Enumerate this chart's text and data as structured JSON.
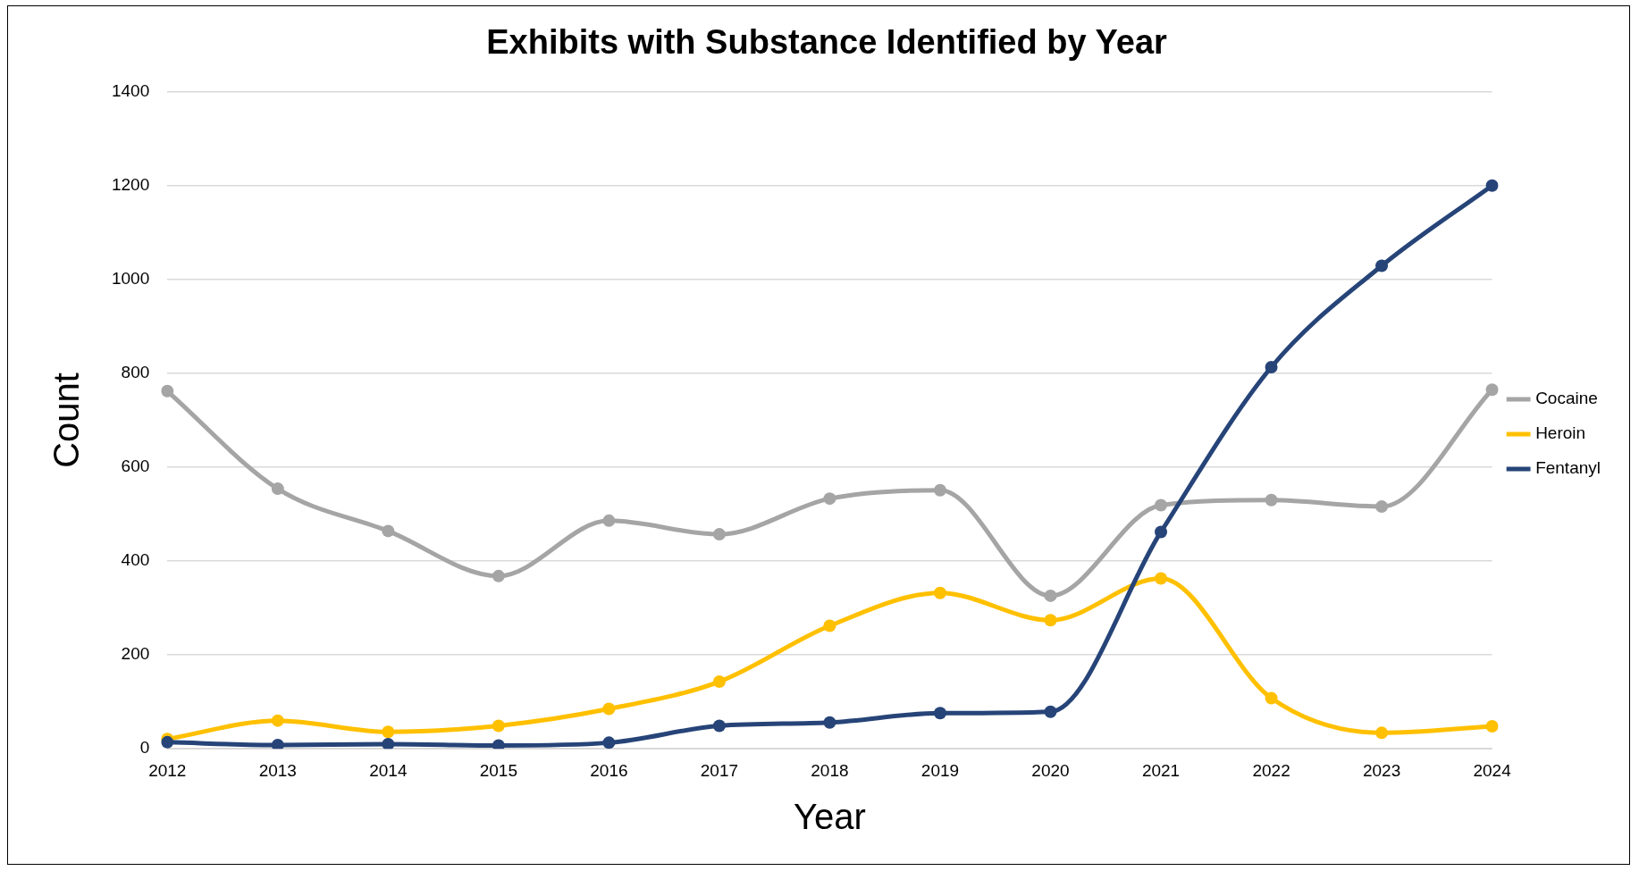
{
  "chart_data": {
    "type": "line",
    "title": "Exhibits with Substance Identified by Year",
    "xlabel": "Year",
    "ylabel": "Count",
    "categories": [
      "2012",
      "2013",
      "2014",
      "2015",
      "2016",
      "2017",
      "2018",
      "2019",
      "2020",
      "2021",
      "2022",
      "2023",
      "2024"
    ],
    "series": [
      {
        "name": "Cocaine",
        "color": "#a5a5a5",
        "values": [
          762,
          554,
          464,
          368,
          486,
          457,
          533,
          551,
          326,
          519,
          530,
          516,
          765
        ]
      },
      {
        "name": "Heroin",
        "color": "#ffc000",
        "values": [
          21,
          60,
          36,
          49,
          85,
          143,
          262,
          332,
          274,
          363,
          108,
          34,
          48
        ]
      },
      {
        "name": "Fentanyl",
        "color": "#264478",
        "values": [
          14,
          8,
          10,
          7,
          13,
          49,
          56,
          76,
          79,
          462,
          813,
          1029,
          1200
        ]
      }
    ],
    "ylim": [
      0,
      1400
    ],
    "yticks": [
      0,
      200,
      400,
      600,
      800,
      1000,
      1200,
      1400
    ],
    "grid": "y",
    "legend": "right",
    "marker": "circle",
    "line_style": "solid"
  }
}
